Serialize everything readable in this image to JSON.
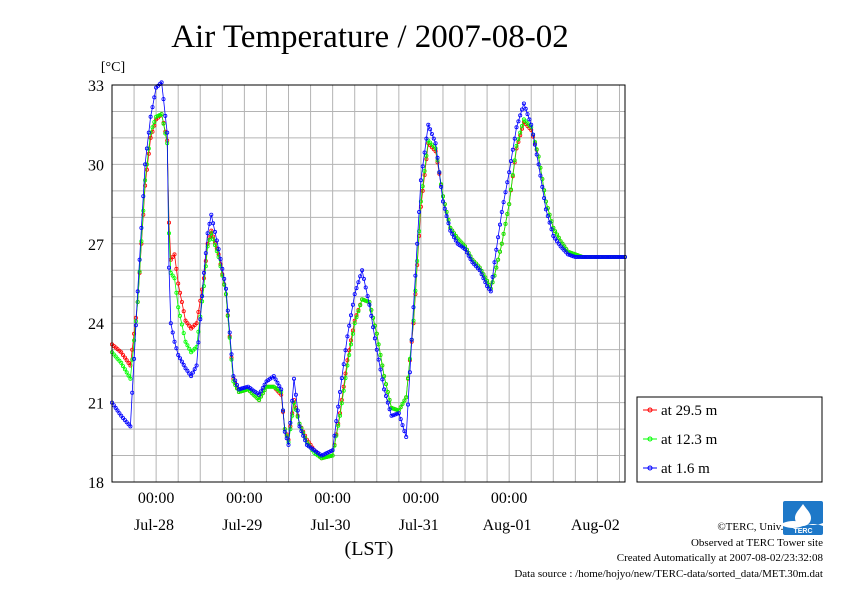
{
  "chart_data": {
    "type": "line",
    "title": "Air Temperature / 2007-08-02",
    "unit_label": "[°C]",
    "xlabel": "(LST)",
    "ylim": [
      18,
      33
    ],
    "yticks": [
      18,
      21,
      24,
      27,
      30,
      33
    ],
    "xlim": [
      "2007-07-27 12:00",
      "2007-08-02 23:30"
    ],
    "x_time_ticks": [
      "00:00",
      "00:00",
      "00:00",
      "00:00",
      "00:00"
    ],
    "x_date_labels": [
      "Jul-28",
      "Jul-29",
      "Jul-30",
      "Jul-31",
      "Aug-01",
      "Aug-02"
    ],
    "grid": true,
    "legend_position": "right",
    "series": [
      {
        "name": "at 29.5 m",
        "color": "#ff0000",
        "x_hours_key": [
          0,
          2.5,
          5,
          7,
          9,
          10.5,
          12,
          13.5,
          15,
          15.5,
          16,
          17,
          18,
          20,
          21.5,
          23,
          25,
          26,
          27,
          29,
          31,
          33,
          34.5,
          37,
          40,
          42,
          44,
          46,
          47,
          48,
          49.5,
          51,
          53,
          55,
          57,
          60,
          62,
          64,
          66,
          68,
          70,
          72,
          74,
          76,
          78,
          80,
          82,
          84,
          86,
          88,
          90,
          92,
          94,
          96,
          98,
          100,
          102,
          103,
          104,
          106,
          108,
          110,
          112,
          114,
          116,
          118,
          120,
          122,
          124,
          126,
          128,
          130,
          132,
          134,
          136,
          138,
          139.5
        ],
        "values": [
          23.2,
          22.9,
          22.4,
          24.8,
          29.2,
          31.0,
          31.7,
          31.9,
          30.9,
          27.8,
          26.4,
          26.6,
          25.5,
          24.1,
          23.8,
          24.0,
          25.7,
          27.0,
          27.5,
          26.6,
          25.1,
          21.9,
          21.4,
          21.5,
          21.1,
          21.6,
          21.6,
          21.3,
          20.0,
          19.6,
          21.1,
          20.2,
          19.6,
          19.2,
          18.9,
          19.0,
          20.6,
          22.6,
          24.1,
          24.9,
          24.8,
          23.6,
          22.0,
          20.8,
          20.7,
          21.2,
          24.0,
          28.4,
          30.8,
          30.5,
          28.8,
          27.6,
          27.2,
          26.9,
          26.4,
          26.1,
          25.6,
          25.3,
          25.8,
          27.0,
          28.5,
          30.6,
          31.6,
          31.3,
          30.3,
          28.6,
          27.6,
          27.1,
          26.7,
          26.6,
          26.5,
          26.5,
          26.5,
          26.5,
          26.5,
          26.5,
          26.5
        ]
      },
      {
        "name": "at 12.3 m",
        "color": "#00ff00",
        "x_hours_key": [
          0,
          2.5,
          5,
          7,
          9,
          10.5,
          12,
          13.5,
          15,
          15.5,
          16,
          17,
          18,
          20,
          21.5,
          23,
          25,
          26,
          27,
          29,
          31,
          33,
          34.5,
          37,
          40,
          42,
          44,
          46,
          47,
          48,
          49.5,
          51,
          53,
          55,
          57,
          60,
          62,
          64,
          66,
          68,
          70,
          72,
          74,
          76,
          78,
          80,
          82,
          84,
          86,
          88,
          90,
          92,
          94,
          96,
          98,
          100,
          102,
          103,
          104,
          106,
          108,
          110,
          112,
          114,
          116,
          118,
          120,
          122,
          124,
          126,
          128,
          130,
          132,
          134,
          136,
          138,
          139.5
        ],
        "values": [
          22.9,
          22.5,
          21.9,
          24.8,
          29.4,
          31.2,
          31.8,
          31.9,
          30.8,
          27.4,
          25.9,
          25.7,
          24.6,
          23.3,
          22.9,
          23.1,
          25.4,
          26.9,
          27.4,
          26.5,
          25.1,
          21.8,
          21.4,
          21.5,
          21.1,
          21.6,
          21.6,
          21.4,
          20.0,
          19.5,
          21.0,
          20.2,
          19.5,
          19.1,
          18.9,
          19.0,
          20.5,
          22.4,
          24.0,
          24.9,
          24.8,
          23.6,
          22.0,
          20.8,
          20.7,
          21.2,
          24.1,
          28.6,
          30.9,
          30.6,
          28.8,
          27.6,
          27.2,
          26.9,
          26.4,
          26.1,
          25.6,
          25.3,
          25.8,
          27.0,
          28.5,
          30.7,
          31.7,
          31.4,
          30.3,
          28.6,
          27.6,
          27.1,
          26.7,
          26.6,
          26.5,
          26.5,
          26.5,
          26.5,
          26.5,
          26.5,
          26.5
        ]
      },
      {
        "name": "at 1.6 m",
        "color": "#0000ff",
        "x_hours_key": [
          0,
          2.5,
          5,
          7,
          9,
          10.5,
          12,
          13.5,
          15,
          15.5,
          16,
          17,
          18,
          20,
          21.5,
          23,
          25,
          26,
          27,
          29,
          31,
          33,
          34.5,
          37,
          40,
          42,
          44,
          46,
          47,
          48,
          49.5,
          51,
          53,
          55,
          57,
          60,
          62,
          64,
          66,
          68,
          70,
          72,
          74,
          76,
          78,
          80,
          82,
          84,
          86,
          88,
          90,
          92,
          94,
          96,
          98,
          100,
          102,
          103,
          104,
          106,
          108,
          110,
          112,
          114,
          116,
          118,
          120,
          122,
          124,
          126,
          128,
          130,
          132,
          134,
          136,
          138,
          139.5
        ],
        "values": [
          21.0,
          20.5,
          20.1,
          25.2,
          30.0,
          31.8,
          32.9,
          33.1,
          31.2,
          26.1,
          24.0,
          23.3,
          22.8,
          22.3,
          22.0,
          22.4,
          25.9,
          27.4,
          28.1,
          26.8,
          25.3,
          22.0,
          21.5,
          21.6,
          21.3,
          21.8,
          22.0,
          21.5,
          19.9,
          19.4,
          21.9,
          20.1,
          19.4,
          19.2,
          19.0,
          19.2,
          21.4,
          23.5,
          25.1,
          26.0,
          24.7,
          23.0,
          21.5,
          20.5,
          20.6,
          19.7,
          24.6,
          29.4,
          31.5,
          30.8,
          28.6,
          27.5,
          27.0,
          26.8,
          26.3,
          26.0,
          25.4,
          25.2,
          26.3,
          28.2,
          29.7,
          31.4,
          32.3,
          31.5,
          30.0,
          28.3,
          27.3,
          26.9,
          26.6,
          26.5,
          26.5,
          26.5,
          26.5,
          26.5,
          26.5,
          26.5,
          26.5
        ]
      }
    ]
  },
  "credits": {
    "copyright": "©TERC, Univ. Tsukuba",
    "observed": "Observed at TERC Tower site",
    "created": "Created Automatically at 2007-08-02/23:32:08",
    "source": "Data source : /home/hojyo/new/TERC-data/sorted_data/MET.30m.dat",
    "logo_text": "TERC"
  }
}
